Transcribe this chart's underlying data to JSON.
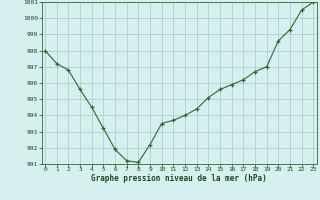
{
  "x": [
    0,
    1,
    2,
    3,
    4,
    5,
    6,
    7,
    8,
    9,
    10,
    11,
    12,
    13,
    14,
    15,
    16,
    17,
    18,
    19,
    20,
    21,
    22,
    23
  ],
  "y": [
    998.0,
    997.2,
    996.8,
    995.6,
    994.5,
    993.2,
    991.9,
    991.2,
    991.1,
    992.2,
    993.5,
    993.7,
    994.0,
    994.4,
    995.1,
    995.6,
    995.9,
    996.2,
    996.7,
    997.0,
    998.6,
    999.3,
    1000.5,
    1001.0
  ],
  "ylim": [
    991,
    1001
  ],
  "yticks": [
    991,
    992,
    993,
    994,
    995,
    996,
    997,
    998,
    999,
    1000,
    1001
  ],
  "xticks": [
    0,
    1,
    2,
    3,
    4,
    5,
    6,
    7,
    8,
    9,
    10,
    11,
    12,
    13,
    14,
    15,
    16,
    17,
    18,
    19,
    20,
    21,
    22,
    23
  ],
  "line_color": "#2d6a2d",
  "marker": "+",
  "marker_color": "#2d6a2d",
  "bg_color": "#d6f0f0",
  "grid_color": "#a8c8c8",
  "xlabel": "Graphe pression niveau de la mer (hPa)",
  "xlabel_color": "#1a4a1a",
  "tick_color": "#1a4a1a",
  "spine_color": "#2d6a2d"
}
